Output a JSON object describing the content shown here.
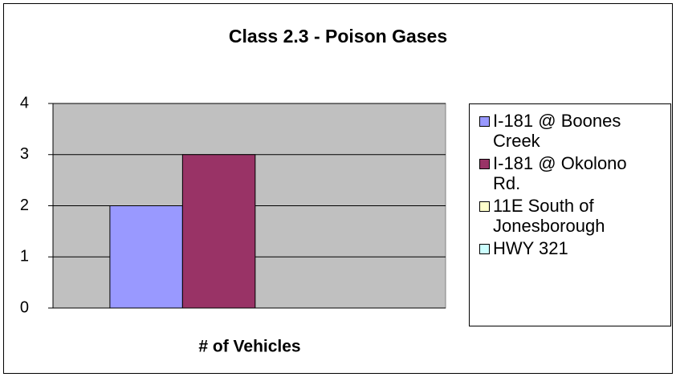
{
  "chart_data": {
    "type": "bar",
    "title": "Class 2.3 - Poison Gases",
    "categories": [
      "# of Vehicles"
    ],
    "series": [
      {
        "name": "I-181 @ Boones Creek",
        "color": "#9999ff",
        "values": [
          2
        ]
      },
      {
        "name": "I-181 @ Okolono Rd.",
        "color": "#993366",
        "values": [
          3
        ]
      },
      {
        "name": "11E South of Jonesborough",
        "color": "#ffffcc",
        "values": [
          0
        ]
      },
      {
        "name": "HWY 321",
        "color": "#ccffff",
        "values": [
          0
        ]
      }
    ],
    "ylim": [
      0,
      4
    ],
    "yticks": [
      0,
      1,
      2,
      3,
      4
    ],
    "grid": true,
    "legend": "right"
  }
}
